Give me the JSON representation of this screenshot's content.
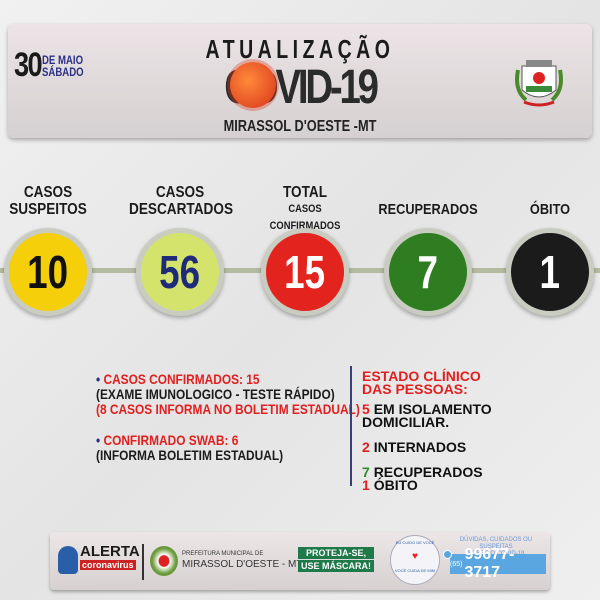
{
  "header": {
    "day": "30",
    "month": "DE MAIO",
    "weekday": "SÁBADO",
    "title": "ATUALIZAÇÃO",
    "covid": "COVID-19",
    "city": "MIRASSOL D'OESTE -MT"
  },
  "stats": [
    {
      "label1": "CASOS",
      "label2": "SUSPEITOS",
      "value": "10",
      "color": "#f4cf0a",
      "text_color": "#111111"
    },
    {
      "label1": "CASOS",
      "label2": "DESCARTADOS",
      "value": "56",
      "color": "#d4e36c",
      "text_color": "#1f2a78"
    },
    {
      "label1": "TOTAL",
      "label2": "CASOS CONFIRMADOS",
      "value": "15",
      "color": "#e3231e",
      "text_color": "#ffffff"
    },
    {
      "label1": "",
      "label2": "RECUPERADOS",
      "value": "7",
      "color": "#2f7d21",
      "text_color": "#ffffff"
    },
    {
      "label1": "",
      "label2": "ÓBITO",
      "value": "1",
      "color": "#1b1b1b",
      "text_color": "#ffffff"
    }
  ],
  "details": {
    "confirmed": "CASOS CONFIRMADOS: 15",
    "confirmed_note": "(EXAME IMUNOLOGICO - TESTE RÁPIDO)",
    "confirmed_note2": "(8 CASOS INFORMA NO BOLETIM ESTADUAL)",
    "swab": "CONFIRMADO SWAB: 6",
    "swab_note": "(INFORMA BOLETIM ESTADUAL)"
  },
  "clinical": {
    "title1": "ESTADO CLÍNICO",
    "title2": "DAS PESSOAS:",
    "items": [
      {
        "n": "5",
        "t": "EM ISOLAMENTO",
        "t2": "DOMICILIAR."
      },
      {
        "n": "2",
        "t": "INTERNADOS"
      },
      {
        "n": "7",
        "t": "RECUPERADOS"
      },
      {
        "n": "1",
        "t": "ÓBITO"
      }
    ]
  },
  "footer": {
    "alert": "ALERTA",
    "alert_sub": "coronavirus",
    "pref1": "PREFEITURA MUNICIPAL DE",
    "pref2": "MIRASSOL D'OESTE - MT",
    "mask1": "PROTEJA-SE,",
    "mask2": "USE MÁSCARA!",
    "badge_top": "EU CUIDO DE VOCÊ",
    "badge_bottom": "VOCÊ CUIDA DE MIM",
    "doubts1": "DÚVIDAS, CUIDADOS OU SUSPEITAS",
    "doubts2": "SOBRE O COVID-19",
    "phone_ddd": "(65)",
    "phone": "99677-3717"
  }
}
